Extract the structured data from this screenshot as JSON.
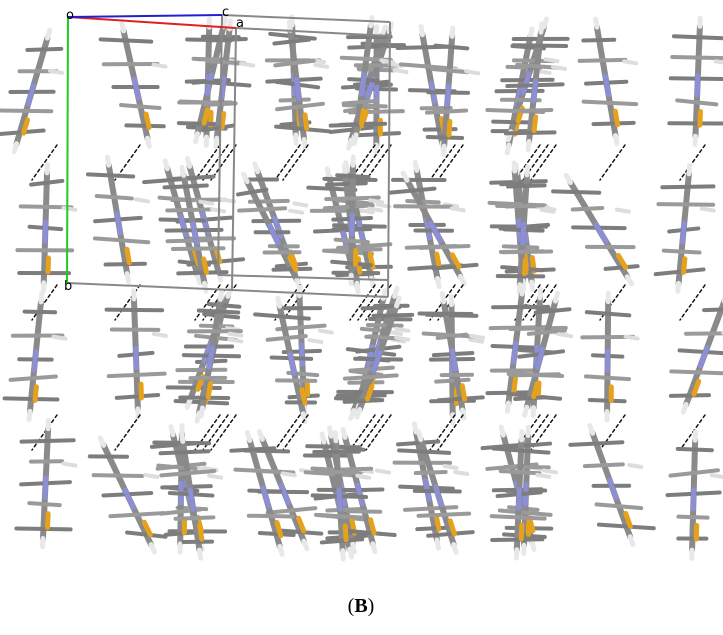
{
  "axes_labels": {
    "origin": "o",
    "c": "c",
    "a": "a",
    "b": "b"
  },
  "figure_label": {
    "open": "(",
    "letter": "B",
    "close": ")"
  }
}
